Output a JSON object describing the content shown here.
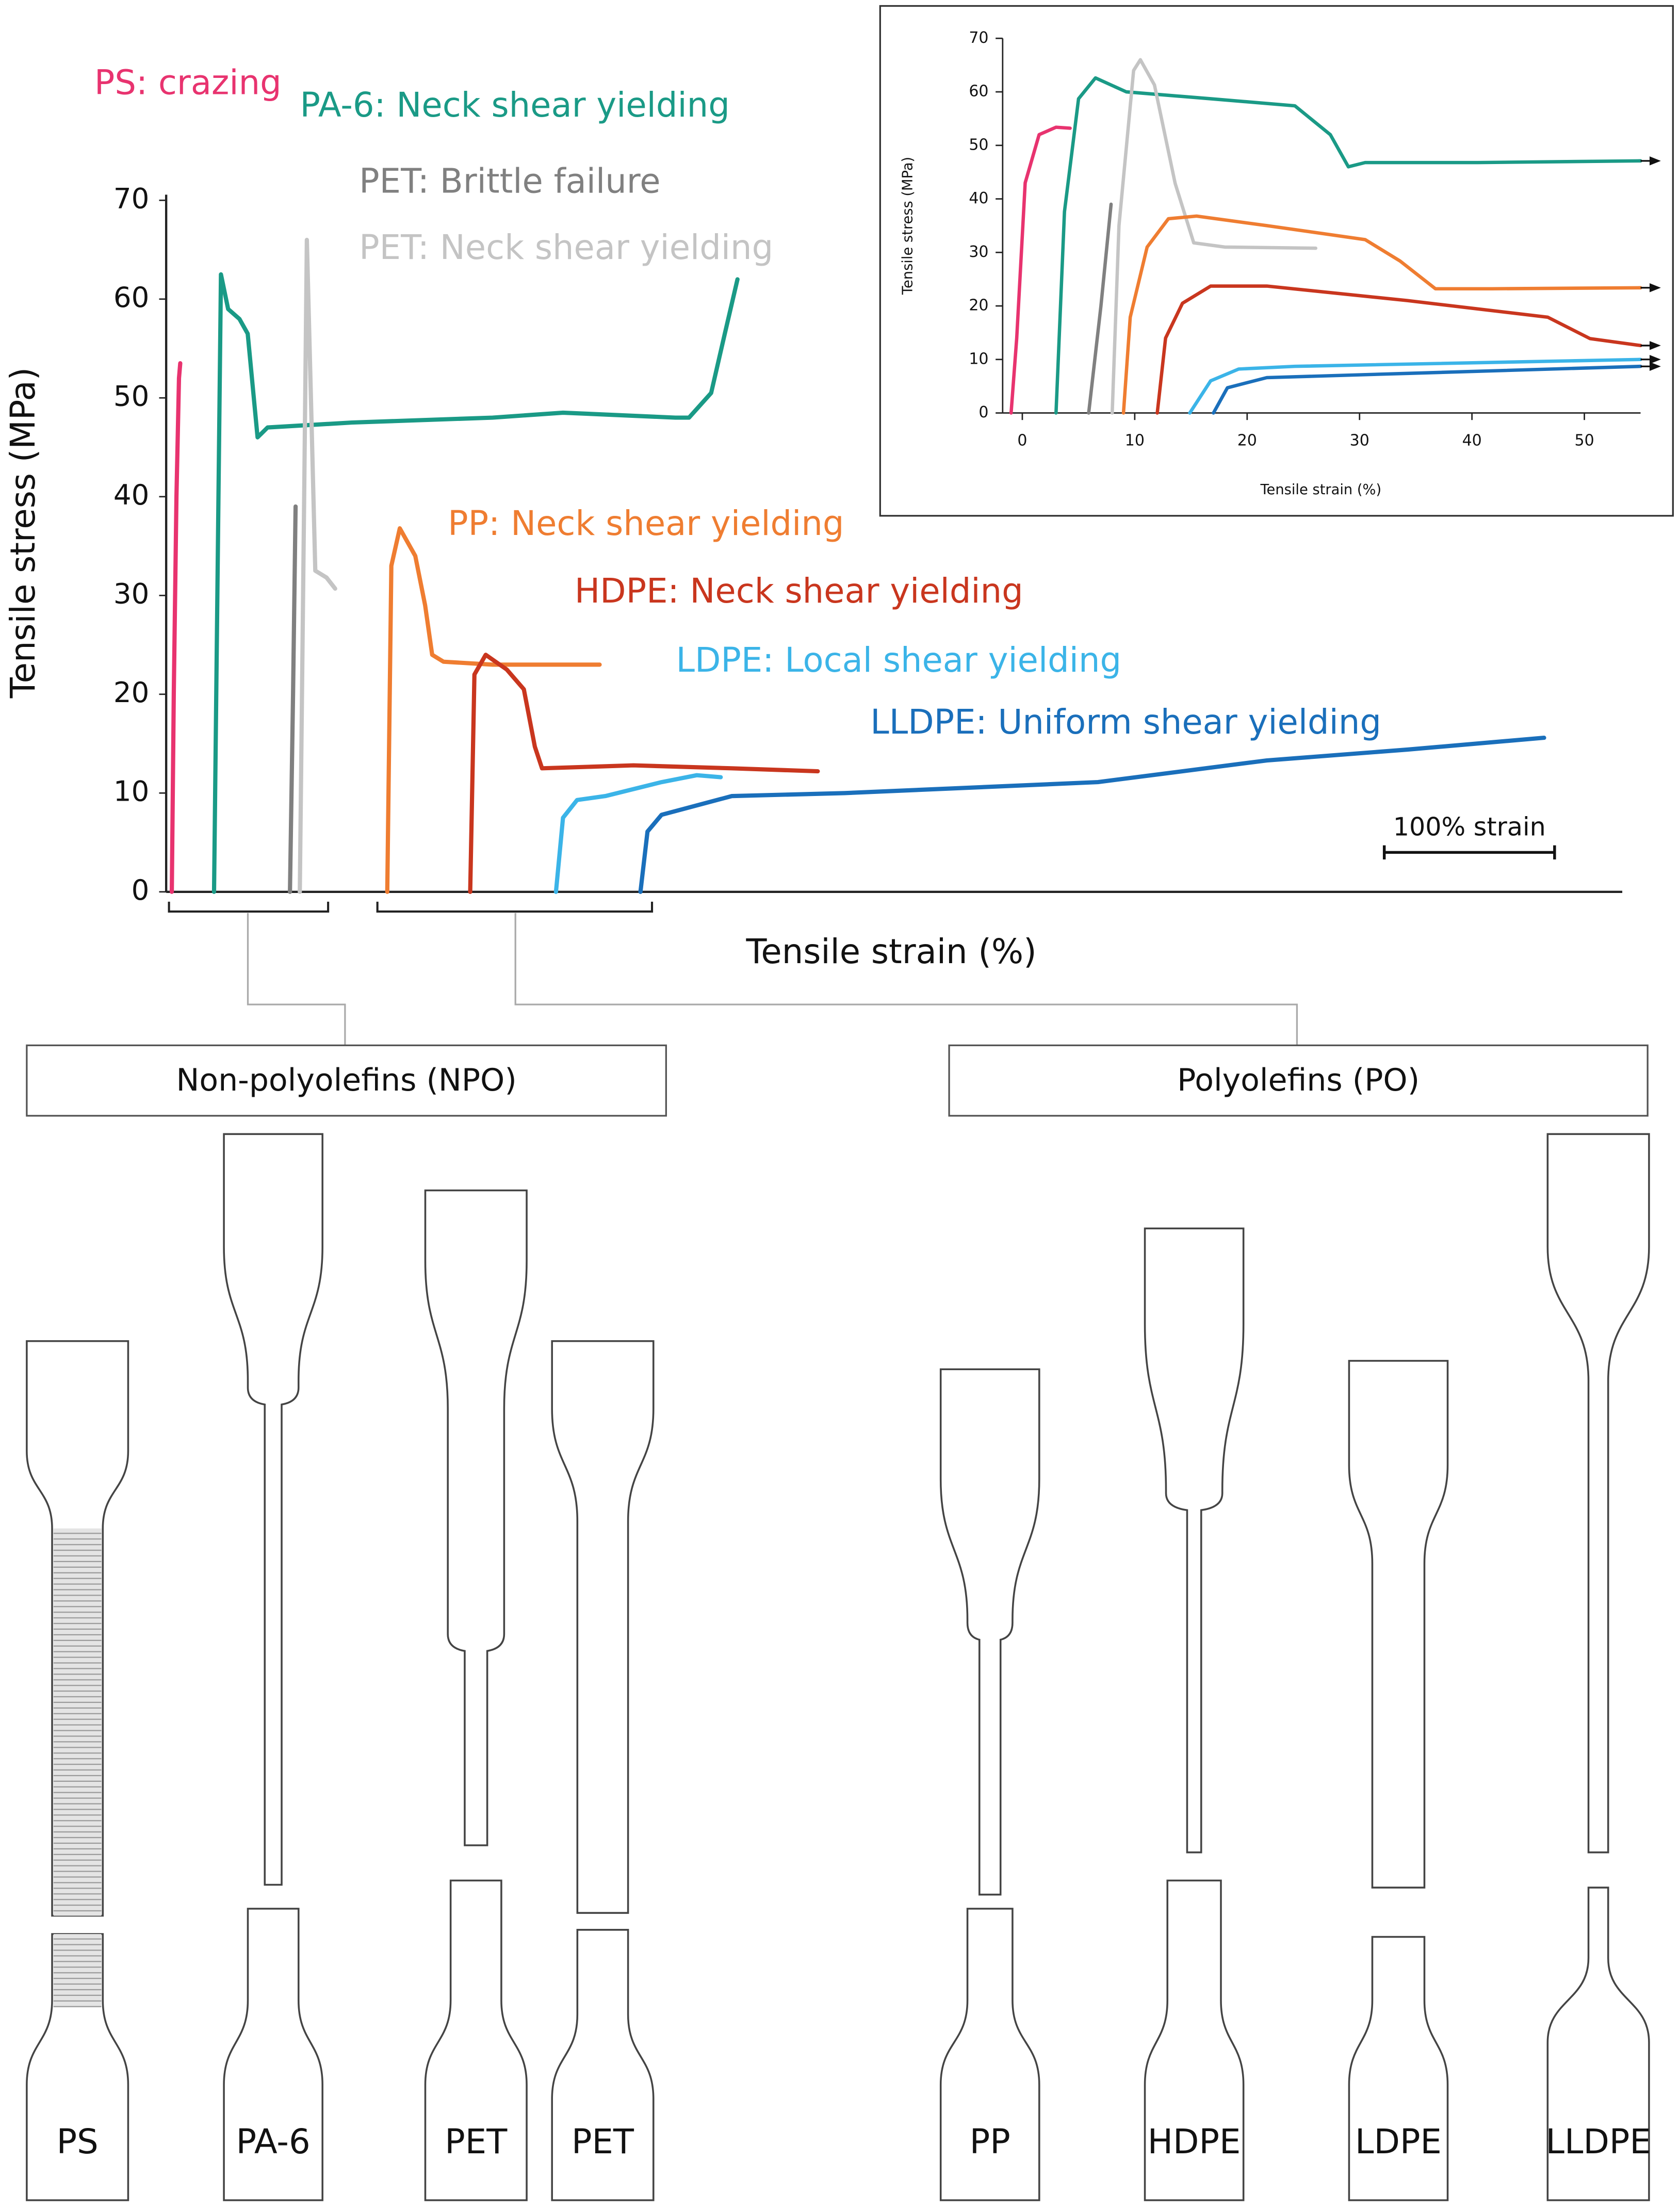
{
  "chart_data": [
    {
      "type": "line",
      "x_label": "Tensile strain (%)",
      "y_label": "Tensile stress (MPa)",
      "xlim": [
        0,
        855
      ],
      "ylim": [
        0,
        70
      ],
      "yticks": [
        0,
        10,
        20,
        30,
        40,
        50,
        60,
        70
      ],
      "scale_bar": {
        "label": "100% strain",
        "value": 100
      },
      "series": [
        {
          "name": "PS: crazing",
          "color": "#e8336f",
          "x": [
            3.3,
            4.5,
            6,
            7.5,
            8.3
          ],
          "values": [
            0,
            20,
            40,
            52,
            53.5
          ]
        },
        {
          "name": "PA-6: Neck shear yielding",
          "color": "#1a9a86",
          "x": [
            28.1,
            32.2,
            36.4,
            43,
            47.9,
            53.7,
            59.5,
            109,
            191.7,
            233,
            299,
            307,
            320,
            328,
            335.5
          ],
          "values": [
            0,
            62.5,
            59,
            58,
            56.5,
            46,
            47,
            47.5,
            48,
            48.5,
            48,
            48,
            50.5,
            56.5,
            62
          ]
        },
        {
          "name": "PET: Brittle failure",
          "color": "#808080",
          "x": [
            72.7,
            74.5,
            76
          ],
          "values": [
            0,
            20,
            39
          ]
        },
        {
          "name": "PET: Neck shear yielding",
          "color": "#c4c4c4",
          "x": [
            78.5,
            81,
            82.6,
            85,
            87.6,
            94.2,
            99.2
          ],
          "values": [
            0,
            40,
            66,
            50,
            32.5,
            31.8,
            30.7
          ]
        },
        {
          "name": "PP: Neck shear yielding",
          "color": "#ef7d31",
          "x": [
            129.8,
            132.2,
            137.2,
            146.3,
            152.1,
            156.2,
            162.8,
            191.7,
            233,
            254.5
          ],
          "values": [
            0,
            33,
            36.8,
            34,
            29,
            24,
            23.3,
            23,
            23,
            23
          ]
        },
        {
          "name": "HDPE: Neck shear yielding",
          "color": "#c9361e",
          "x": [
            178.5,
            181,
            187.6,
            200,
            210,
            216.5,
            220.7,
            274.4,
            332.2,
            382.6
          ],
          "values": [
            0,
            22,
            24,
            22.5,
            20.5,
            14.7,
            12.5,
            12.8,
            12.5,
            12.2
          ]
        },
        {
          "name": "LDPE: Local shear yielding",
          "color": "#3bb4e8",
          "x": [
            228.9,
            233,
            241.3,
            257.9,
            290.9,
            311.6,
            325.6
          ],
          "values": [
            0,
            7.5,
            9.3,
            9.7,
            11.1,
            11.8,
            11.6
          ]
        },
        {
          "name": "LLDPE: Uniform shear yielding",
          "color": "#1a6fbb",
          "x": [
            278.5,
            282.6,
            290.9,
            332.2,
            398.3,
            547.1,
            646.3,
            728.9,
            809.1
          ],
          "values": [
            0,
            6.1,
            7.8,
            9.7,
            10,
            11.1,
            13.3,
            14.4,
            15.6
          ]
        }
      ]
    },
    {
      "type": "line",
      "x_label": "Tensile strain (%)",
      "y_label": "Tensile stress (MPa)",
      "xlim": [
        -1.75,
        55
      ],
      "ylim": [
        0,
        70
      ],
      "xticks": [
        0,
        10,
        20,
        30,
        40,
        50
      ],
      "yticks": [
        0,
        10,
        20,
        30,
        40,
        50,
        60,
        70
      ],
      "series": [
        {
          "color": "#e8336f",
          "x": [
            -1,
            -0.5,
            0.25,
            1.5,
            3,
            4.25
          ],
          "values": [
            0,
            14,
            43,
            52,
            53.4,
            53.2
          ]
        },
        {
          "color": "#1a9a86",
          "x": [
            3,
            3.75,
            5,
            6.5,
            9.25,
            16.75,
            24.25,
            27.4,
            29,
            30.5,
            40.5,
            55
          ],
          "values": [
            0,
            37.6,
            58.7,
            62.6,
            60,
            58.7,
            57.4,
            52,
            46,
            46.8,
            46.8,
            47.1
          ]
        },
        {
          "color": "#808080",
          "x": [
            5.9,
            7,
            7.9
          ],
          "values": [
            0,
            20,
            39
          ]
        },
        {
          "color": "#c4c4c4",
          "x": [
            8,
            8.6,
            9.9,
            10.5,
            11.75,
            13.6,
            15.25,
            18,
            26.1
          ],
          "values": [
            0,
            35,
            64,
            66,
            61.3,
            42.9,
            31.8,
            31,
            30.8
          ]
        },
        {
          "color": "#ef7d31",
          "x": [
            9,
            9.6,
            11.1,
            13,
            15.5,
            21.75,
            30.5,
            33.6,
            36.75,
            41.75,
            55
          ],
          "values": [
            0,
            17.9,
            31,
            36.3,
            36.8,
            35,
            32.4,
            28.4,
            23.2,
            23.2,
            23.4
          ]
        },
        {
          "color": "#c9361e",
          "x": [
            12,
            12.75,
            14.25,
            16.75,
            21.75,
            34.25,
            46.75,
            50.5,
            55
          ],
          "values": [
            0,
            14,
            20.5,
            23.7,
            23.7,
            21,
            17.9,
            13.9,
            12.6
          ]
        },
        {
          "color": "#3bb4e8",
          "x": [
            14.9,
            16.75,
            19.25,
            24.25,
            55
          ],
          "values": [
            0,
            6,
            8.2,
            8.7,
            10
          ]
        },
        {
          "color": "#1a6fbb",
          "x": [
            17,
            18.25,
            21.75,
            34.25,
            55
          ],
          "values": [
            0,
            4.7,
            6.6,
            7.4,
            8.7
          ]
        }
      ]
    }
  ],
  "groups": [
    "Non-polyolefins (NPO)",
    "Polyolefins (PO)"
  ],
  "specimens": [
    "PS",
    "PA-6",
    "PET",
    "PET",
    "PP",
    "HDPE",
    "LDPE",
    "LLDPE"
  ]
}
